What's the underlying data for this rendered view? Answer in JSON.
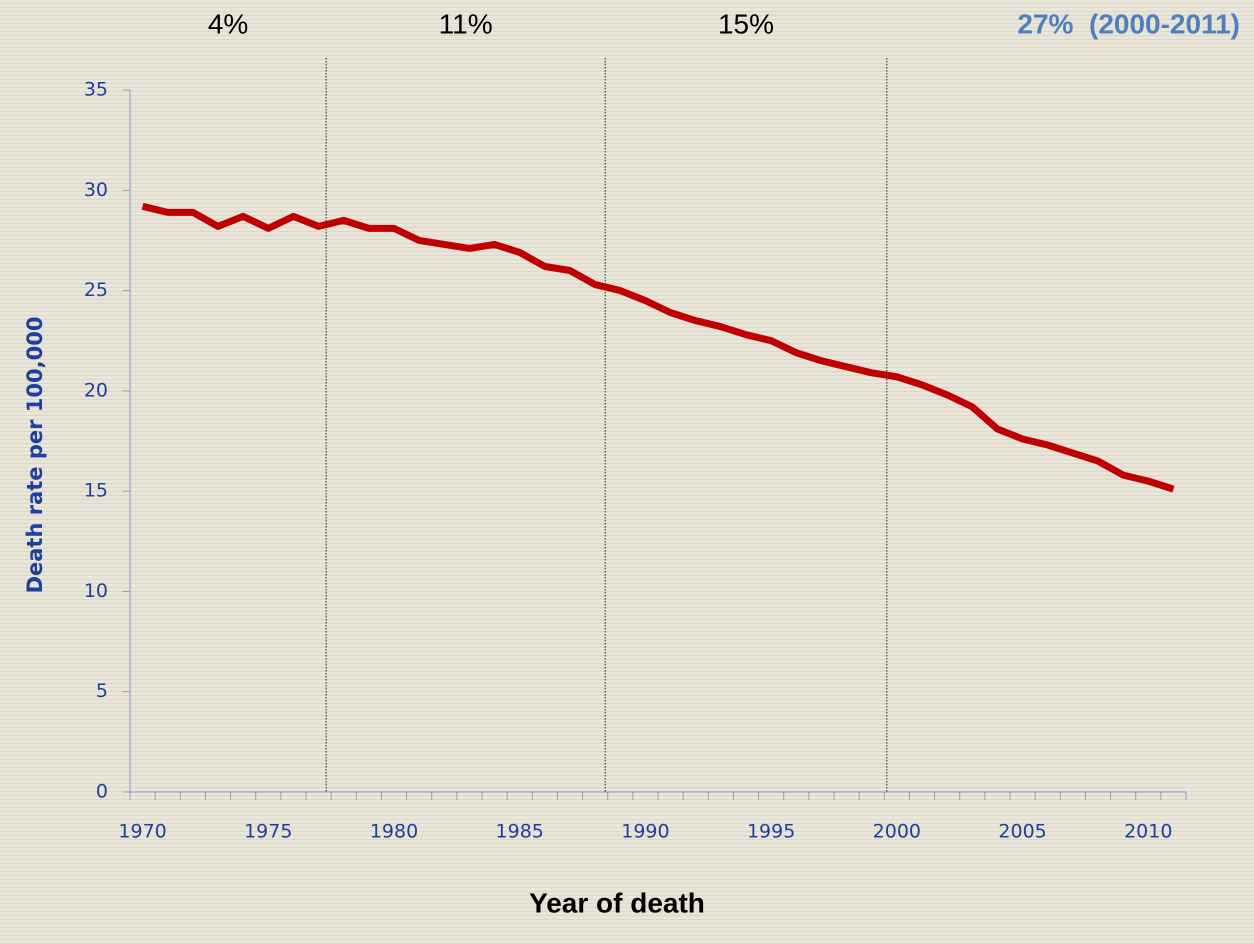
{
  "chart_data": {
    "type": "line",
    "x_label": "Year of death",
    "y_label": "Death rate per 100,000",
    "x": [
      1970,
      1971,
      1972,
      1973,
      1974,
      1975,
      1976,
      1977,
      1978,
      1979,
      1980,
      1981,
      1982,
      1983,
      1984,
      1985,
      1986,
      1987,
      1988,
      1989,
      1990,
      1991,
      1992,
      1993,
      1994,
      1995,
      1996,
      1997,
      1998,
      1999,
      2000,
      2001,
      2002,
      2003,
      2004,
      2005,
      2006,
      2007,
      2008,
      2009,
      2010,
      2011
    ],
    "series": [
      {
        "color": "#c00000",
        "values": [
          29.2,
          28.9,
          28.9,
          28.2,
          28.7,
          28.1,
          28.7,
          28.2,
          28.5,
          28.1,
          28.1,
          27.5,
          27.3,
          27.1,
          27.3,
          26.9,
          26.2,
          26.0,
          25.3,
          25.0,
          24.5,
          23.9,
          23.5,
          23.2,
          22.8,
          22.5,
          21.9,
          21.5,
          21.2,
          20.9,
          20.7,
          20.3,
          19.8,
          19.2,
          18.1,
          17.6,
          17.3,
          16.9,
          16.5,
          15.8,
          15.5,
          15.1
        ]
      }
    ],
    "xlim": [
      1969.5,
      2011.5
    ],
    "xticks": [
      1970,
      1975,
      1980,
      1985,
      1990,
      1995,
      2000,
      2005,
      2010
    ],
    "ylim": [
      0,
      35
    ],
    "yticks": [
      0,
      5,
      10,
      15,
      20,
      25,
      30,
      35
    ],
    "period_dividers": [
      1977.3,
      1988.4,
      1999.6
    ],
    "annotations": [
      {
        "text": "4%",
        "color": "#000000"
      },
      {
        "text": "11%",
        "color": "#000000"
      },
      {
        "text": "15%",
        "color": "#000000"
      },
      {
        "text": "27%  (2000-2011)",
        "color": "#4f7fbf"
      }
    ]
  }
}
